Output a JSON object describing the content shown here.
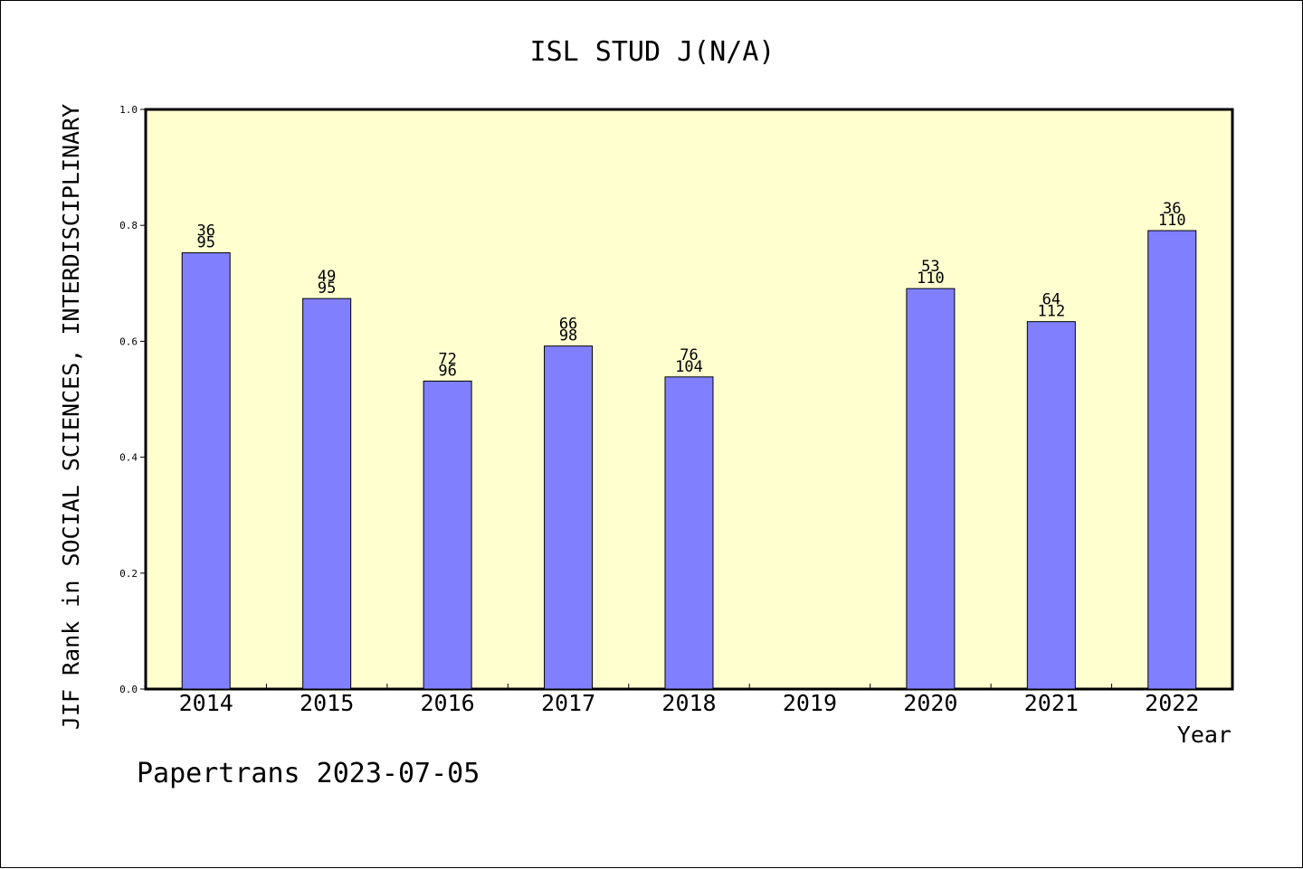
{
  "chart_data": {
    "type": "bar",
    "title": "ISL STUD J(N/A)",
    "xlabel": "Year",
    "ylabel": "JIF Rank in SOCIAL SCIENCES, INTERDISCIPLINARY",
    "ylim": [
      0,
      1.0
    ],
    "yticks": [
      "0.0",
      "0.2",
      "0.4",
      "0.6",
      "0.8",
      "1.0"
    ],
    "grid": false,
    "categories": [
      "2014",
      "2015",
      "2016",
      "2017",
      "2018",
      "2019",
      "2020",
      "2021",
      "2022"
    ],
    "values": [
      0.7526,
      0.6737,
      0.5313,
      0.5918,
      0.5385,
      null,
      0.6909,
      0.6339,
      0.7909
    ],
    "labels_top": [
      "36",
      "49",
      "72",
      "66",
      "76",
      "",
      "53",
      "64",
      "36"
    ],
    "labels_bottom": [
      "95",
      "95",
      "96",
      "98",
      "104",
      "",
      "110",
      "112",
      "110"
    ],
    "bar_color": "#8080ff",
    "plot_background": "#ffffd0"
  },
  "footer": "Papertrans 2023-07-05"
}
